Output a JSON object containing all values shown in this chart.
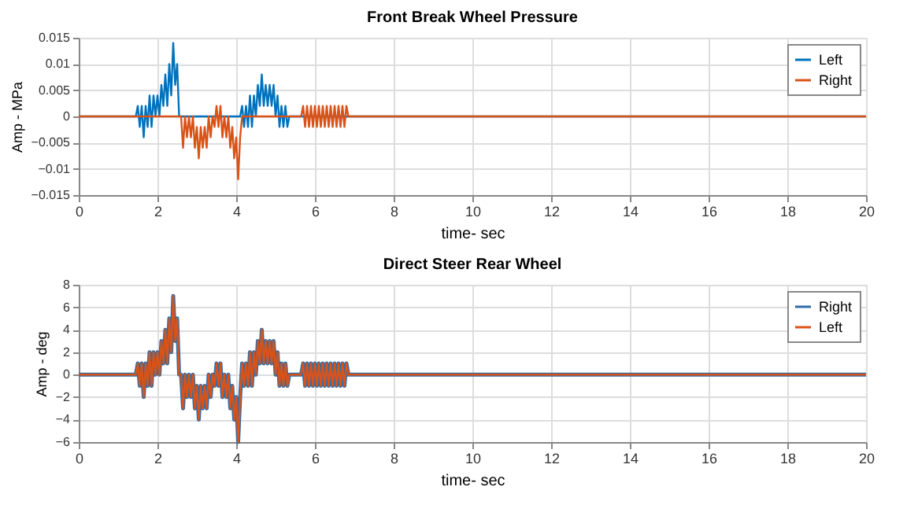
{
  "chart_data": [
    {
      "type": "line",
      "title": "Front Break Wheel Pressure",
      "xlabel": "time- sec",
      "ylabel": "Amp - MPa",
      "xlim": [
        0,
        20
      ],
      "xticks": [
        0,
        2,
        4,
        6,
        8,
        10,
        12,
        14,
        16,
        18,
        20
      ],
      "ylim": [
        -0.015,
        0.015
      ],
      "yticks": [
        -0.015,
        -0.01,
        -0.005,
        0,
        0.005,
        0.01,
        0.015
      ],
      "grid": true,
      "legend": "top right",
      "series": [
        {
          "name": "Left",
          "color": "#0072bd",
          "x": [
            0,
            1.45,
            1.5,
            1.55,
            1.6,
            1.65,
            1.7,
            1.75,
            1.8,
            1.85,
            1.9,
            1.95,
            2,
            2.05,
            2.1,
            2.15,
            2.2,
            2.25,
            2.3,
            2.35,
            2.4,
            2.45,
            2.5,
            2.55,
            2.6,
            4.1,
            4.15,
            4.2,
            4.25,
            4.3,
            4.35,
            4.4,
            4.45,
            4.5,
            4.55,
            4.6,
            4.65,
            4.7,
            4.75,
            4.8,
            4.85,
            4.9,
            4.95,
            5,
            5.05,
            5.1,
            5.15,
            5.2,
            5.25,
            5.3,
            5.35,
            20
          ],
          "values": [
            0,
            0,
            0.002,
            -0.002,
            0.002,
            -0.004,
            0.002,
            -0.002,
            0.004,
            -0.002,
            0.004,
            0,
            0.004,
            0,
            0.006,
            0.002,
            0.008,
            0.002,
            0.01,
            0.004,
            0.014,
            0.006,
            0.01,
            0,
            0,
            0,
            0.002,
            -0.002,
            0.002,
            -0.002,
            0.004,
            -0.002,
            0.004,
            0,
            0.006,
            0.002,
            0.008,
            0.002,
            0.006,
            0.002,
            0.006,
            0.002,
            0.006,
            0,
            0.004,
            -0.002,
            0.002,
            -0.002,
            0.002,
            -0.002,
            0,
            0
          ]
        },
        {
          "name": "Right",
          "color": "#d95319",
          "x": [
            0,
            2.6,
            2.65,
            2.7,
            2.75,
            2.8,
            2.85,
            2.9,
            2.95,
            3,
            3.05,
            3.1,
            3.15,
            3.2,
            3.25,
            3.3,
            3.35,
            3.4,
            3.45,
            3.5,
            3.55,
            3.6,
            3.65,
            3.7,
            3.75,
            3.8,
            3.85,
            3.9,
            3.95,
            4,
            4.05,
            4.1,
            4.15,
            5.65,
            5.7,
            5.75,
            5.8,
            5.85,
            5.9,
            5.95,
            6,
            6.05,
            6.1,
            6.15,
            6.2,
            6.25,
            6.3,
            6.35,
            6.4,
            6.45,
            6.5,
            6.55,
            6.6,
            6.65,
            6.7,
            6.75,
            6.8,
            6.85,
            20
          ],
          "values": [
            0,
            0,
            -0.006,
            0,
            -0.004,
            0,
            -0.004,
            0,
            -0.006,
            -0.002,
            -0.008,
            -0.002,
            -0.006,
            -0.002,
            -0.006,
            0,
            -0.004,
            0,
            -0.002,
            0.002,
            -0.002,
            0.002,
            -0.004,
            0,
            -0.004,
            0,
            -0.006,
            -0.002,
            -0.008,
            -0.004,
            -0.012,
            -0.004,
            0,
            0,
            0.002,
            -0.002,
            0.002,
            -0.002,
            0.002,
            -0.002,
            0.002,
            -0.002,
            0.002,
            -0.002,
            0.002,
            -0.002,
            0.002,
            -0.002,
            0.002,
            -0.002,
            0.002,
            -0.002,
            0.002,
            -0.002,
            0.002,
            -0.002,
            0.002,
            0,
            0
          ]
        }
      ]
    },
    {
      "type": "line",
      "title": "Direct Steer Rear Wheel",
      "xlabel": "time- sec",
      "ylabel": "Amp - deg",
      "xlim": [
        0,
        20
      ],
      "xticks": [
        0,
        2,
        4,
        6,
        8,
        10,
        12,
        14,
        16,
        18,
        20
      ],
      "ylim": [
        -6,
        8
      ],
      "yticks": [
        -6,
        -4,
        -2,
        0,
        2,
        4,
        6,
        8
      ],
      "grid": true,
      "legend": "top right",
      "series": [
        {
          "name": "Right",
          "color": "#2f6ea8",
          "x": [
            0,
            1.45,
            1.5,
            1.55,
            1.6,
            1.65,
            1.7,
            1.75,
            1.8,
            1.85,
            1.9,
            1.95,
            2,
            2.05,
            2.1,
            2.15,
            2.2,
            2.25,
            2.3,
            2.35,
            2.4,
            2.45,
            2.5,
            2.55,
            2.6,
            2.65,
            2.7,
            2.75,
            2.8,
            2.85,
            2.9,
            2.95,
            3,
            3.05,
            3.1,
            3.15,
            3.2,
            3.25,
            3.3,
            3.35,
            3.4,
            3.45,
            3.5,
            3.55,
            3.6,
            3.65,
            3.7,
            3.75,
            3.8,
            3.85,
            3.9,
            3.95,
            4,
            4.05,
            4.1,
            4.15,
            4.2,
            4.25,
            4.3,
            4.35,
            4.4,
            4.45,
            4.5,
            4.55,
            4.6,
            4.65,
            4.7,
            4.75,
            4.8,
            4.85,
            4.9,
            4.95,
            5,
            5.05,
            5.1,
            5.15,
            5.2,
            5.25,
            5.3,
            5.35,
            5.65,
            5.7,
            5.75,
            5.8,
            5.85,
            5.9,
            5.95,
            6,
            6.05,
            6.1,
            6.15,
            6.2,
            6.25,
            6.3,
            6.35,
            6.4,
            6.45,
            6.5,
            6.55,
            6.6,
            6.65,
            6.7,
            6.75,
            6.8,
            6.85,
            20
          ],
          "values": [
            0,
            0,
            1,
            -1,
            1,
            -2,
            1,
            -1,
            2,
            -1,
            2,
            0,
            2,
            0,
            3,
            1,
            4,
            1,
            5,
            2,
            7,
            3,
            5,
            0,
            0,
            -3,
            0,
            -2,
            0,
            -2,
            0,
            -3,
            -1,
            -4,
            -1,
            -3,
            -1,
            -3,
            0,
            -2,
            0,
            -1,
            1,
            -1,
            1,
            -2,
            0,
            -2,
            0,
            -3,
            -1,
            -4,
            -2,
            -6,
            -2,
            1,
            -1,
            1,
            -1,
            2,
            -1,
            2,
            0,
            3,
            1,
            4,
            1,
            3,
            1,
            3,
            1,
            3,
            0,
            2,
            -1,
            1,
            -1,
            1,
            -1,
            0,
            0,
            1,
            -1,
            1,
            -1,
            1,
            -1,
            1,
            -1,
            1,
            -1,
            1,
            -1,
            1,
            -1,
            1,
            -1,
            1,
            -1,
            1,
            -1,
            1,
            -1,
            1,
            0,
            0
          ]
        },
        {
          "name": "Left",
          "color": "#d95319",
          "x": [
            0,
            1.45,
            1.5,
            1.55,
            1.6,
            1.65,
            1.7,
            1.75,
            1.8,
            1.85,
            1.9,
            1.95,
            2,
            2.05,
            2.1,
            2.15,
            2.2,
            2.25,
            2.3,
            2.35,
            2.4,
            2.45,
            2.5,
            2.55,
            2.6,
            2.65,
            2.7,
            2.75,
            2.8,
            2.85,
            2.9,
            2.95,
            3,
            3.05,
            3.1,
            3.15,
            3.2,
            3.25,
            3.3,
            3.35,
            3.4,
            3.45,
            3.5,
            3.55,
            3.6,
            3.65,
            3.7,
            3.75,
            3.8,
            3.85,
            3.9,
            3.95,
            4,
            4.05,
            4.1,
            4.15,
            4.2,
            4.25,
            4.3,
            4.35,
            4.4,
            4.45,
            4.5,
            4.55,
            4.6,
            4.65,
            4.7,
            4.75,
            4.8,
            4.85,
            4.9,
            4.95,
            5,
            5.05,
            5.1,
            5.15,
            5.2,
            5.25,
            5.3,
            5.35,
            5.65,
            5.7,
            5.75,
            5.8,
            5.85,
            5.9,
            5.95,
            6,
            6.05,
            6.1,
            6.15,
            6.2,
            6.25,
            6.3,
            6.35,
            6.4,
            6.45,
            6.5,
            6.55,
            6.6,
            6.65,
            6.7,
            6.75,
            6.8,
            6.85,
            20
          ],
          "values": [
            0,
            0,
            1,
            -1,
            1,
            -2,
            1,
            -1,
            2,
            -1,
            2,
            0,
            2,
            0,
            3,
            1,
            4,
            1,
            5,
            2,
            7,
            3,
            5,
            0,
            0,
            -3,
            0,
            -2,
            0,
            -2,
            0,
            -3,
            -1,
            -4,
            -1,
            -3,
            -1,
            -3,
            0,
            -2,
            0,
            -1,
            1,
            -1,
            1,
            -2,
            0,
            -2,
            0,
            -3,
            -1,
            -4,
            -2,
            -6,
            -2,
            1,
            -1,
            1,
            -1,
            2,
            -1,
            2,
            0,
            3,
            1,
            4,
            1,
            3,
            1,
            3,
            1,
            3,
            0,
            2,
            -1,
            1,
            -1,
            1,
            -1,
            0,
            0,
            1,
            -1,
            1,
            -1,
            1,
            -1,
            1,
            -1,
            1,
            -1,
            1,
            -1,
            1,
            -1,
            1,
            -1,
            1,
            -1,
            1,
            -1,
            1,
            -1,
            1,
            0,
            0
          ]
        }
      ]
    }
  ]
}
